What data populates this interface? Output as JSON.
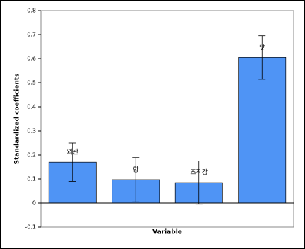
{
  "chart_data": {
    "type": "bar",
    "x_label": "Variable",
    "y_label": "Standardized coefficients",
    "categories": [
      "외관",
      "향",
      "조직감",
      "맛"
    ],
    "values": [
      0.17,
      0.097,
      0.085,
      0.605
    ],
    "errors": [
      0.08,
      0.092,
      0.09,
      0.09
    ],
    "color": "#4f94f5",
    "ylim": [
      -0.1,
      0.8
    ],
    "yticks": [
      -0.1,
      0,
      0.1,
      0.2,
      0.3,
      0.4,
      0.5,
      0.6,
      0.7,
      0.8
    ],
    "grid": false
  }
}
